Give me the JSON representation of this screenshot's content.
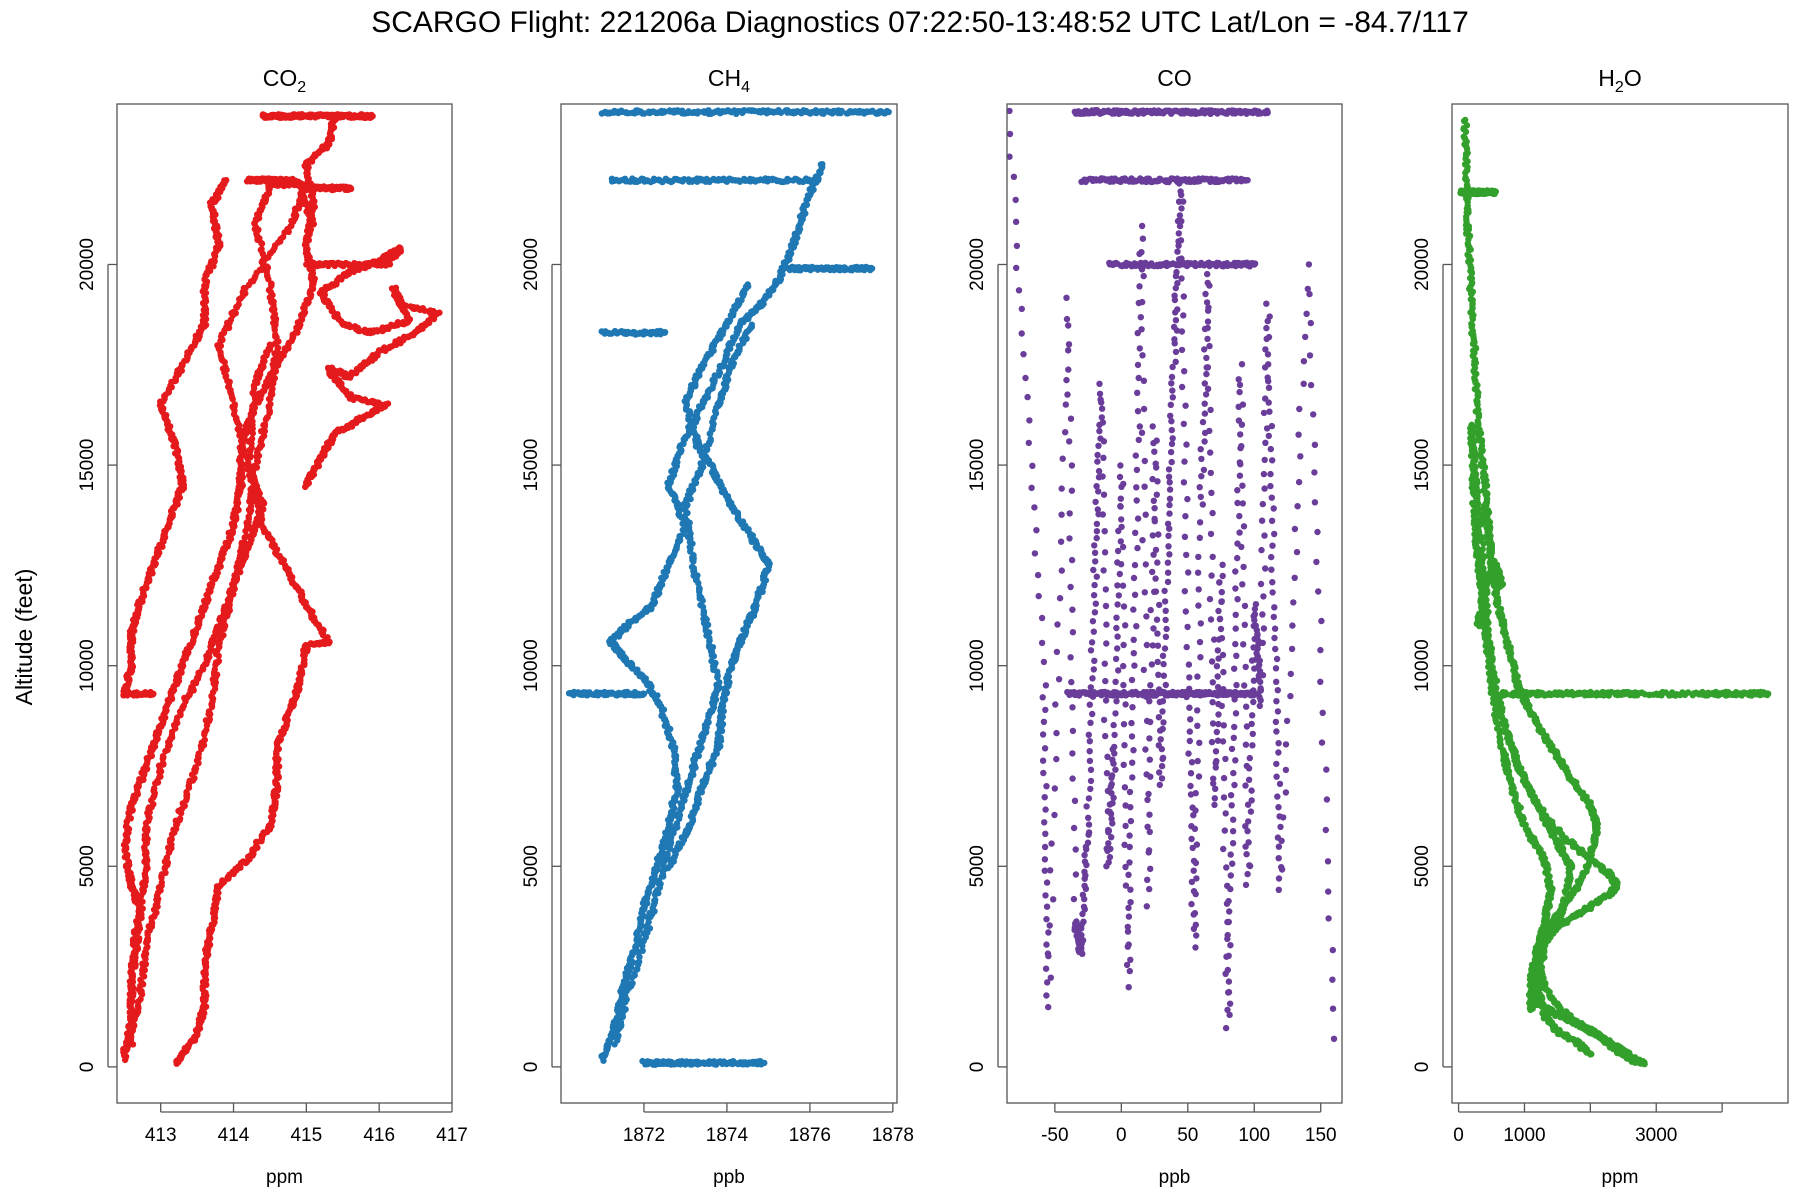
{
  "title": "SCARGO Flight: 221206a  Diagnostics  07:22:50-13:48:52 UTC  Lat/Lon = -84.7/117",
  "ylabel": "Altitude (feet)",
  "chart_data": [
    {
      "type": "scatter",
      "title": "CO",
      "title_sub": "2",
      "title_post": "",
      "xlabel": "ppm",
      "ylabel": "Altitude (feet)",
      "color": "#e41a1c",
      "xlim": [
        412.4,
        417.0
      ],
      "ylim": [
        -900,
        24000
      ],
      "xticks": [
        413,
        414,
        415,
        416,
        417
      ],
      "yticks": [
        0,
        5000,
        10000,
        15000,
        20000
      ],
      "series": [
        {
          "name": "",
          "x": [
            412.5,
            412.6,
            412.6,
            412.7,
            412.6,
            412.5,
            412.6,
            412.8,
            413.0,
            413.2,
            413.4,
            413.6,
            413.8,
            414.0,
            414.1,
            414.1,
            414.3,
            414.6,
            414.9,
            415.1,
            415.0,
            415.1,
            415.0,
            415.3,
            415.4
          ],
          "y": [
            200,
            1200,
            2500,
            4000,
            4500,
            5500,
            6500,
            7500,
            8500,
            9500,
            10500,
            11500,
            12500,
            13500,
            14500,
            15500,
            16500,
            17500,
            18500,
            19500,
            20500,
            21500,
            22500,
            23000,
            23700
          ]
        },
        {
          "name": "",
          "x": [
            412.5,
            412.7,
            412.8,
            413.0,
            413.2,
            413.5,
            413.7,
            413.8,
            414.0,
            414.2,
            414.3,
            414.5,
            414.6,
            414.5,
            414.3,
            414.5,
            414.9,
            415.1
          ],
          "y": [
            400,
            1500,
            3000,
            4500,
            6000,
            7500,
            9000,
            10500,
            12000,
            13500,
            15000,
            16500,
            18000,
            19500,
            21000,
            22000,
            22000,
            21000
          ]
        },
        {
          "name": "",
          "x": [
            412.6,
            412.6,
            412.7,
            412.8,
            412.8,
            413.0,
            413.3,
            413.6,
            413.8,
            414.0,
            414.2,
            414.4,
            414.2,
            414.0,
            413.8,
            414.2,
            414.8,
            415.0
          ],
          "y": [
            600,
            2000,
            3500,
            5000,
            6000,
            7500,
            9000,
            10000,
            11000,
            12000,
            13000,
            14000,
            15000,
            16500,
            18000,
            19500,
            21000,
            22000
          ]
        },
        {
          "name": "",
          "x": [
            413.2,
            413.5,
            413.6,
            413.6,
            413.7,
            413.8,
            414.2,
            414.5,
            414.6,
            414.6,
            414.8,
            414.9,
            415.0,
            415.3,
            415.0,
            414.7,
            414.4,
            414.2,
            414.3,
            414.5
          ],
          "y": [
            100,
            800,
            1500,
            2500,
            3500,
            4500,
            5200,
            6000,
            7000,
            8000,
            9000,
            9500,
            10500,
            10600,
            11500,
            12500,
            13500,
            15000,
            17000,
            18000
          ]
        },
        {
          "name": "",
          "x": [
            412.5,
            412.6,
            412.6,
            412.7,
            412.9,
            413.1,
            413.3,
            413.2,
            413.0,
            413.3,
            413.6,
            413.6,
            413.8,
            413.7,
            413.9
          ],
          "y": [
            9300,
            10000,
            10800,
            11500,
            12500,
            13500,
            14500,
            15500,
            16500,
            17500,
            18500,
            19500,
            20500,
            21500,
            22100
          ]
        },
        {
          "name": "",
          "x": [
            412.5,
            412.9
          ],
          "y": [
            9300,
            9300
          ]
        },
        {
          "name": "",
          "x": [
            415.0,
            415.2,
            415.4,
            415.8,
            416.1,
            415.6,
            415.3,
            415.6,
            416.0,
            416.5,
            416.8,
            416.3,
            416.2,
            416.4,
            415.9,
            415.5,
            415.2,
            415.6,
            416.0,
            416.3,
            416.1,
            415.5,
            415.0
          ],
          "y": [
            14500,
            15200,
            15800,
            16200,
            16500,
            16700,
            17400,
            17200,
            17800,
            18300,
            18800,
            19000,
            19400,
            18600,
            18300,
            18500,
            19300,
            19800,
            20100,
            20400,
            20000,
            20000,
            20000
          ]
        },
        {
          "name": "",
          "x": [
            414.4,
            414.6,
            414.8,
            415.0,
            415.3,
            415.6,
            415.8,
            415.9
          ],
          "y": [
            23700,
            23700,
            23700,
            23700,
            23700,
            23700,
            23700,
            23700
          ]
        },
        {
          "name": "",
          "x": [
            414.2,
            414.4,
            414.6,
            414.8,
            415.0,
            415.2,
            415.4,
            415.6
          ],
          "y": [
            22100,
            22100,
            22100,
            22100,
            21900,
            21900,
            21900,
            21900
          ]
        }
      ]
    },
    {
      "type": "scatter",
      "title": "CH",
      "title_sub": "4",
      "title_post": "",
      "xlabel": "ppb",
      "ylabel": "",
      "color": "#1f78b4",
      "xlim": [
        1870.0,
        1878.1
      ],
      "ylim": [
        -900,
        24000
      ],
      "xticks": [
        1872,
        1874,
        1876,
        1878
      ],
      "yticks": [
        0,
        5000,
        10000,
        15000,
        20000
      ],
      "series": [
        {
          "name": "",
          "x": [
            1871.0,
            1871.3,
            1871.5,
            1871.8,
            1872.0,
            1872.3,
            1872.6,
            1872.8,
            1872.7,
            1872.4,
            1872.0,
            1871.5,
            1871.2,
            1871.6,
            1872.2,
            1872.6,
            1873.0,
            1872.6,
            1872.9,
            1873.4,
            1873.9,
            1874.3,
            1874.8,
            1875.3,
            1875.6,
            1875.9,
            1876.3
          ],
          "y": [
            200,
            1000,
            2000,
            3000,
            4000,
            5000,
            6000,
            7000,
            8000,
            9000,
            9700,
            10200,
            10600,
            11000,
            11500,
            12500,
            13500,
            14500,
            15500,
            16500,
            17500,
            18500,
            19000,
            19700,
            20500,
            21500,
            22500
          ]
        },
        {
          "name": "",
          "x": [
            1872.6,
            1873.1,
            1873.4,
            1873.8,
            1873.9,
            1874.1,
            1874.4,
            1874.7,
            1875.0,
            1874.6,
            1874.1,
            1873.7,
            1873.3,
            1873.0,
            1873.4,
            1874.0,
            1874.5
          ],
          "y": [
            5000,
            6000,
            7000,
            8000,
            9000,
            10000,
            10800,
            11500,
            12500,
            13200,
            14000,
            14800,
            15500,
            16500,
            17500,
            18500,
            19500
          ]
        },
        {
          "name": "",
          "x": [
            1871.3,
            1871.6,
            1872.1,
            1872.5,
            1872.9,
            1873.2,
            1873.5,
            1873.8,
            1873.5,
            1873.2,
            1873.0,
            1873.4,
            1873.8,
            1874.1,
            1874.6
          ],
          "y": [
            600,
            1800,
            3500,
            5000,
            6500,
            7500,
            8500,
            9500,
            11000,
            12500,
            14000,
            15000,
            16500,
            17500,
            18500
          ]
        },
        {
          "name": "",
          "x": [
            1870.2,
            1870.8,
            1871.4,
            1872.0
          ],
          "y": [
            9300,
            9300,
            9300,
            9300
          ]
        },
        {
          "name": "",
          "x": [
            1871.0,
            1872.0,
            1873.0,
            1874.0,
            1875.0,
            1876.0,
            1877.0,
            1877.9
          ],
          "y": [
            23800,
            23800,
            23800,
            23800,
            23800,
            23800,
            23800,
            23800
          ]
        },
        {
          "name": "",
          "x": [
            1871.2,
            1872.2,
            1873.2,
            1874.2,
            1875.2,
            1876.2
          ],
          "y": [
            22100,
            22100,
            22100,
            22100,
            22100,
            22100
          ]
        },
        {
          "name": "",
          "x": [
            1875.5,
            1876.0,
            1876.5,
            1877.0,
            1877.5
          ],
          "y": [
            19900,
            19900,
            19900,
            19900,
            19900
          ]
        },
        {
          "name": "",
          "x": [
            1871.0,
            1871.8,
            1872.5
          ],
          "y": [
            18300,
            18300,
            18300
          ]
        },
        {
          "name": "",
          "x": [
            1872.0,
            1872.5,
            1873.0,
            1873.6,
            1874.2,
            1874.9
          ],
          "y": [
            100,
            100,
            100,
            100,
            100,
            100
          ]
        }
      ]
    },
    {
      "type": "scatter",
      "title": "CO",
      "title_sub": "",
      "title_post": "",
      "xlabel": "ppb",
      "ylabel": "",
      "color": "#6a3d9a",
      "xlim": [
        -86,
        166
      ],
      "ylim": [
        -900,
        24000
      ],
      "xticks": [
        -50,
        0,
        50,
        100,
        150
      ],
      "yticks": [
        0,
        5000,
        10000,
        15000,
        20000
      ],
      "series": [
        {
          "name": "",
          "x": [
            -85,
            -58,
            -55,
            -40,
            -35,
            -30,
            -25,
            -20,
            -15,
            -10,
            -5,
            0,
            5,
            10,
            15,
            20,
            25,
            30,
            35,
            40,
            45,
            50,
            55,
            60,
            65,
            70,
            75,
            80,
            85,
            90,
            95,
            100,
            105,
            110,
            115,
            120,
            140,
            160
          ],
          "y": [
            23800,
            9500,
            1500,
            19200,
            3600,
            2800,
            6000,
            12000,
            17000,
            5000,
            8000,
            15000,
            2000,
            11000,
            21000,
            4000,
            16000,
            7000,
            13000,
            18000,
            22000,
            10000,
            3000,
            14000,
            20000,
            6500,
            12500,
            1000,
            8500,
            17500,
            4500,
            11500,
            9000,
            19000,
            11200,
            4400,
            20000,
            700
          ]
        },
        {
          "name": "",
          "x": [
            -35,
            -10,
            10,
            30,
            50,
            70,
            90,
            110
          ],
          "y": [
            23800,
            23800,
            23800,
            23800,
            23800,
            23800,
            23800,
            23800
          ]
        },
        {
          "name": "",
          "x": [
            -40,
            -20,
            0,
            20,
            40,
            60,
            80,
            100
          ],
          "y": [
            9300,
            9300,
            9300,
            9300,
            9300,
            9300,
            9300,
            9300
          ]
        },
        {
          "name": "",
          "x": [
            -30,
            -5,
            20,
            45,
            70,
            95
          ],
          "y": [
            22100,
            22100,
            22100,
            22100,
            22100,
            22100
          ]
        },
        {
          "name": "",
          "x": [
            -10,
            20,
            50,
            80,
            100
          ],
          "y": [
            20000,
            20000,
            20000,
            20000,
            20000
          ]
        }
      ]
    },
    {
      "type": "scatter",
      "title": "H",
      "title_sub": "2",
      "title_post": "O",
      "xlabel": "ppm",
      "ylabel": "",
      "color": "#33a02c",
      "xlim": [
        -100,
        5000
      ],
      "ylim": [
        -900,
        24000
      ],
      "xticks": [
        0,
        1000,
        3000
      ],
      "xticks_unlabeled": [
        2000,
        4000
      ],
      "yticks": [
        0,
        5000,
        10000,
        15000,
        20000
      ],
      "series": [
        {
          "name": "",
          "x": [
            2800,
            2600,
            2400,
            2200,
            1900,
            1500,
            1200,
            1100,
            1200,
            1500,
            1800,
            2000,
            2100,
            2000,
            1700,
            1400,
            1100,
            900,
            750,
            600,
            500,
            450,
            400,
            300,
            250,
            200,
            150,
            120,
            100
          ],
          "y": [
            100,
            200,
            400,
            700,
            1000,
            1300,
            1600,
            2200,
            3000,
            3800,
            4500,
            5200,
            6000,
            6500,
            7200,
            8000,
            8800,
            9500,
            10500,
            11500,
            12500,
            13500,
            14500,
            16000,
            17500,
            19000,
            20500,
            22000,
            23600
          ]
        },
        {
          "name": "",
          "x": [
            2700,
            2400,
            2100,
            1800,
            1500,
            1300,
            1200,
            1300,
            1600,
            2000,
            2300,
            2400,
            2300,
            2000,
            1600,
            1200,
            900,
            700,
            500,
            400,
            300,
            200
          ],
          "y": [
            200,
            500,
            800,
            1100,
            1500,
            2000,
            2600,
            3200,
            3600,
            4000,
            4300,
            4500,
            4800,
            5200,
            5700,
            6500,
            7500,
            8500,
            10000,
            12000,
            14000,
            16000
          ]
        },
        {
          "name": "",
          "x": [
            2000,
            1800,
            1500,
            1300,
            1200,
            1300,
            1600,
            1700,
            1500,
            1200,
            900,
            600,
            400,
            250,
            200
          ],
          "y": [
            300,
            600,
            900,
            1300,
            2000,
            3000,
            4000,
            5000,
            5600,
            6500,
            7500,
            9000,
            11000,
            13500,
            16000
          ]
        },
        {
          "name": "",
          "x": [
            1100,
            1100,
            1200,
            1300,
            1400,
            1300,
            1000,
            800,
            650,
            500,
            400,
            300,
            250,
            200
          ],
          "y": [
            1400,
            2000,
            2800,
            3600,
            4400,
            5200,
            6000,
            7000,
            8000,
            9500,
            11000,
            12500,
            14000,
            16000
          ]
        },
        {
          "name": "",
          "x": [
            600,
            1000,
            1500,
            2000,
            2500,
            2700,
            3600,
            4000,
            4400,
            4700
          ],
          "y": [
            9300,
            9300,
            9300,
            9300,
            9300,
            9300,
            9300,
            9300,
            9300,
            9300
          ]
        },
        {
          "name": "",
          "x": [
            300,
            400,
            500,
            550,
            600,
            650,
            500,
            400
          ],
          "y": [
            11000,
            12000,
            12300,
            12500,
            12300,
            12000,
            12700,
            14000
          ]
        },
        {
          "name": "",
          "x": [
            50,
            150,
            250,
            350,
            450,
            550
          ],
          "y": [
            21800,
            21800,
            21800,
            21800,
            21800,
            21800
          ]
        }
      ]
    }
  ]
}
